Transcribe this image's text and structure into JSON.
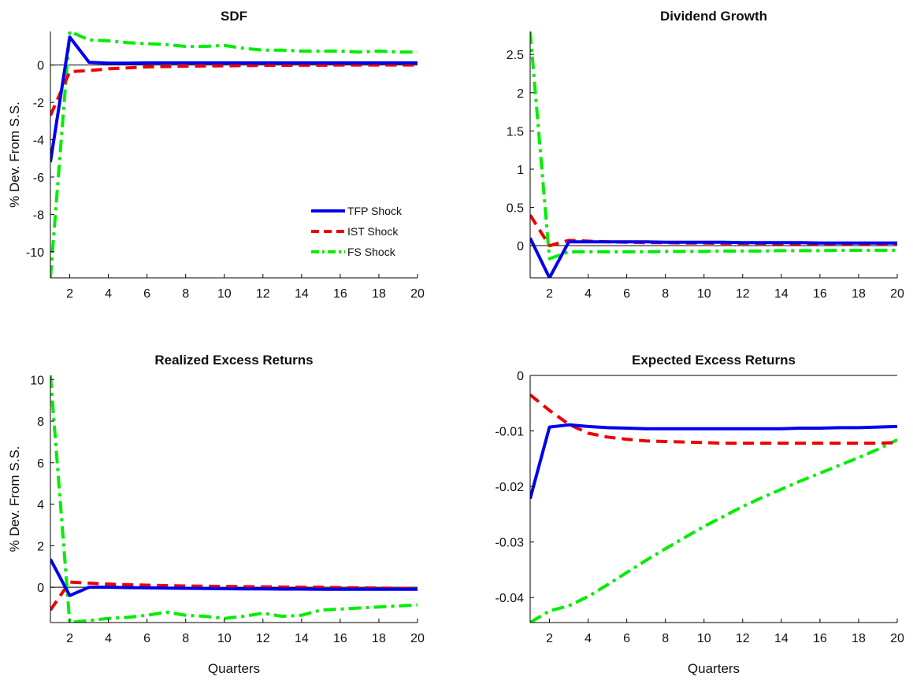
{
  "figure": {
    "series_styles": [
      {
        "key": "tfp",
        "color": "#0000ee",
        "dash": "solid"
      },
      {
        "key": "ist",
        "color": "#ee0000",
        "dash": "dashed"
      },
      {
        "key": "fs",
        "color": "#00ee00",
        "dash": "dashdot"
      }
    ]
  },
  "chart_data": [
    {
      "type": "line",
      "title": "SDF",
      "xlabel": "",
      "ylabel": "% Dev. From S.S.",
      "xlim": [
        1,
        20
      ],
      "ylim": [
        -11.4,
        1.8
      ],
      "xticks": [
        2,
        4,
        6,
        8,
        10,
        12,
        14,
        16,
        18,
        20
      ],
      "yticks": [
        -10,
        -8,
        -6,
        -4,
        -2,
        0
      ],
      "zero_line": true,
      "legend": {
        "placement": "right-center",
        "entries": [
          "TFP Shock",
          "IST Shock",
          "FS Shock"
        ]
      },
      "x": [
        1,
        2,
        3,
        4,
        5,
        6,
        7,
        8,
        9,
        10,
        11,
        12,
        13,
        14,
        15,
        16,
        17,
        18,
        19,
        20
      ],
      "series": [
        {
          "name": "TFP Shock",
          "values": [
            -5.2,
            1.5,
            0.15,
            0.1,
            0.1,
            0.12,
            0.12,
            0.12,
            0.12,
            0.12,
            0.12,
            0.12,
            0.12,
            0.12,
            0.12,
            0.12,
            0.12,
            0.12,
            0.12,
            0.12
          ]
        },
        {
          "name": "IST Shock",
          "values": [
            -2.7,
            -0.35,
            -0.3,
            -0.2,
            -0.15,
            -0.1,
            -0.08,
            -0.06,
            -0.05,
            -0.04,
            -0.03,
            -0.02,
            -0.02,
            -0.01,
            -0.01,
            0,
            0,
            0,
            0,
            0
          ]
        },
        {
          "name": "FS Shock",
          "values": [
            -11.4,
            1.8,
            1.35,
            1.3,
            1.2,
            1.15,
            1.1,
            1.0,
            1.0,
            1.05,
            0.9,
            0.8,
            0.8,
            0.75,
            0.75,
            0.75,
            0.7,
            0.75,
            0.7,
            0.7
          ]
        }
      ]
    },
    {
      "type": "line",
      "title": "Dividend Growth",
      "xlabel": "",
      "ylabel": "",
      "xlim": [
        1,
        20
      ],
      "ylim": [
        -0.42,
        2.8
      ],
      "xticks": [
        2,
        4,
        6,
        8,
        10,
        12,
        14,
        16,
        18,
        20
      ],
      "yticks": [
        0,
        0.5,
        1,
        1.5,
        2,
        2.5
      ],
      "zero_line": true,
      "x": [
        1,
        2,
        3,
        4,
        5,
        6,
        7,
        8,
        9,
        10,
        11,
        12,
        13,
        14,
        15,
        16,
        17,
        18,
        19,
        20
      ],
      "series": [
        {
          "name": "TFP Shock",
          "values": [
            0.1,
            -0.42,
            0.05,
            0.05,
            0.05,
            0.05,
            0.05,
            0.045,
            0.045,
            0.045,
            0.045,
            0.04,
            0.04,
            0.04,
            0.04,
            0.035,
            0.035,
            0.035,
            0.035,
            0.035
          ]
        },
        {
          "name": "IST Shock",
          "values": [
            0.4,
            0.0,
            0.07,
            0.06,
            0.05,
            0.045,
            0.04,
            0.04,
            0.035,
            0.035,
            0.03,
            0.03,
            0.03,
            0.025,
            0.025,
            0.025,
            0.02,
            0.02,
            0.02,
            0.02
          ]
        },
        {
          "name": "FS Shock",
          "values": [
            2.8,
            -0.17,
            -0.08,
            -0.08,
            -0.08,
            -0.08,
            -0.08,
            -0.075,
            -0.075,
            -0.075,
            -0.07,
            -0.07,
            -0.07,
            -0.065,
            -0.065,
            -0.065,
            -0.06,
            -0.06,
            -0.06,
            -0.06
          ]
        }
      ]
    },
    {
      "type": "line",
      "title": "Realized Excess Returns",
      "xlabel": "Quarters",
      "ylabel": "% Dev. From S.S.",
      "xlim": [
        1,
        20
      ],
      "ylim": [
        -1.7,
        10.2
      ],
      "xticks": [
        2,
        4,
        6,
        8,
        10,
        12,
        14,
        16,
        18,
        20
      ],
      "yticks": [
        0,
        2,
        4,
        6,
        8,
        10
      ],
      "zero_line": true,
      "x": [
        1,
        2,
        3,
        4,
        5,
        6,
        7,
        8,
        9,
        10,
        11,
        12,
        13,
        14,
        15,
        16,
        17,
        18,
        19,
        20
      ],
      "series": [
        {
          "name": "TFP Shock",
          "values": [
            1.35,
            -0.4,
            0.0,
            0.0,
            -0.02,
            -0.03,
            -0.04,
            -0.05,
            -0.06,
            -0.07,
            -0.08,
            -0.08,
            -0.09,
            -0.09,
            -0.1,
            -0.1,
            -0.1,
            -0.1,
            -0.1,
            -0.1
          ]
        },
        {
          "name": "IST Shock",
          "values": [
            -1.1,
            0.25,
            0.2,
            0.15,
            0.12,
            0.1,
            0.08,
            0.06,
            0.05,
            0.04,
            0.03,
            0.02,
            0.01,
            0,
            0,
            -0.02,
            -0.03,
            -0.04,
            -0.05,
            -0.05
          ]
        },
        {
          "name": "FS Shock",
          "values": [
            10.2,
            -1.7,
            -1.6,
            -1.5,
            -1.45,
            -1.35,
            -1.2,
            -1.35,
            -1.4,
            -1.5,
            -1.4,
            -1.25,
            -1.4,
            -1.35,
            -1.1,
            -1.05,
            -1.0,
            -0.95,
            -0.9,
            -0.85
          ]
        }
      ]
    },
    {
      "type": "line",
      "title": "Expected Excess Returns",
      "xlabel": "Quarters",
      "ylabel": "",
      "xlim": [
        1,
        20
      ],
      "ylim": [
        -0.0445,
        0
      ],
      "xticks": [
        2,
        4,
        6,
        8,
        10,
        12,
        14,
        16,
        18,
        20
      ],
      "yticks": [
        -0.04,
        -0.03,
        -0.02,
        -0.01,
        0
      ],
      "zero_line": false,
      "x": [
        1,
        2,
        3,
        4,
        5,
        6,
        7,
        8,
        9,
        10,
        11,
        12,
        13,
        14,
        15,
        16,
        17,
        18,
        19,
        20
      ],
      "series": [
        {
          "name": "TFP Shock",
          "values": [
            -0.0222,
            -0.0093,
            -0.0089,
            -0.0092,
            -0.0094,
            -0.0095,
            -0.0096,
            -0.0096,
            -0.0096,
            -0.0096,
            -0.0096,
            -0.0096,
            -0.0096,
            -0.0096,
            -0.0095,
            -0.0095,
            -0.0094,
            -0.0094,
            -0.0093,
            -0.0092
          ]
        },
        {
          "name": "IST Shock",
          "values": [
            -0.0035,
            -0.0063,
            -0.0088,
            -0.0104,
            -0.0111,
            -0.0115,
            -0.0118,
            -0.0119,
            -0.012,
            -0.0121,
            -0.0122,
            -0.0122,
            -0.0122,
            -0.0122,
            -0.0122,
            -0.0122,
            -0.0122,
            -0.0122,
            -0.0122,
            -0.0121
          ]
        },
        {
          "name": "FS Shock",
          "values": [
            -0.0445,
            -0.0424,
            -0.0415,
            -0.0398,
            -0.0377,
            -0.0355,
            -0.0333,
            -0.0312,
            -0.0292,
            -0.0272,
            -0.0254,
            -0.0236,
            -0.022,
            -0.0205,
            -0.019,
            -0.0176,
            -0.0162,
            -0.0148,
            -0.0133,
            -0.0116
          ]
        }
      ]
    }
  ]
}
